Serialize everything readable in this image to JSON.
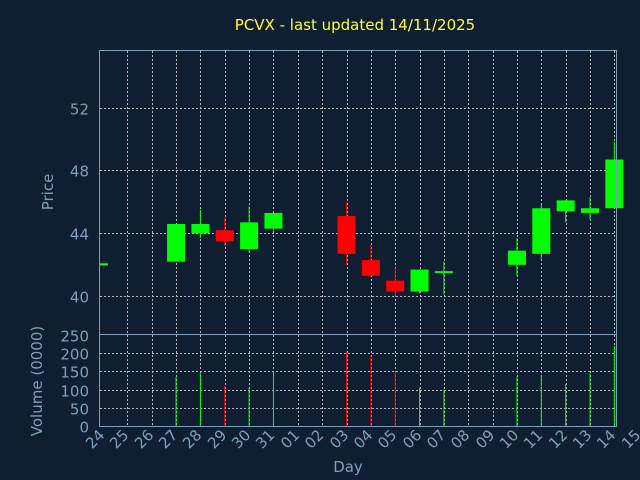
{
  "chart_data": {
    "type": "candlestick",
    "title": "PCVX - last updated 14/11/2025",
    "xlabel": "Day",
    "price_panel": {
      "ylabel": "Price",
      "yticks": [
        40,
        44,
        48,
        52
      ],
      "ylim": [
        37.6,
        55.6
      ]
    },
    "volume_panel": {
      "ylabel": "Volume (0000)",
      "yticks": [
        0,
        50,
        100,
        150,
        200,
        250
      ],
      "ylim": [
        0,
        250
      ]
    },
    "x_tick_labels": [
      "24",
      "25",
      "26",
      "27",
      "28",
      "29",
      "30",
      "31",
      "01",
      "02",
      "03",
      "04",
      "05",
      "06",
      "07",
      "08",
      "09",
      "10",
      "11",
      "12",
      "13",
      "14",
      "15"
    ],
    "colors": {
      "up": "#00ff00",
      "down": "#ff0000",
      "grid": "#b8b8b8",
      "axis_text": "#7f9fbf",
      "title": "#ffff33"
    },
    "candles": [
      {
        "slot": 0,
        "open": 42.1,
        "close": 42.1,
        "high": 42.1,
        "low": 42.1,
        "volume": 0
      },
      {
        "slot": 3,
        "open": 42.2,
        "close": 44.6,
        "high": 44.6,
        "low": 42.2,
        "volume": 135
      },
      {
        "slot": 4,
        "open": 44.0,
        "close": 44.6,
        "high": 45.5,
        "low": 43.7,
        "volume": 145
      },
      {
        "slot": 5,
        "open": 44.2,
        "close": 43.5,
        "high": 45.0,
        "low": 43.2,
        "volume": 110
      },
      {
        "slot": 6,
        "open": 43.0,
        "close": 44.7,
        "high": 45.7,
        "low": 42.8,
        "volume": 105
      },
      {
        "slot": 7,
        "open": 44.3,
        "close": 45.3,
        "high": 45.3,
        "low": 44.2,
        "volume": 148
      },
      {
        "slot": 10,
        "open": 45.1,
        "close": 42.7,
        "high": 46.0,
        "low": 42.0,
        "volume": 205
      },
      {
        "slot": 11,
        "open": 42.3,
        "close": 41.3,
        "high": 43.3,
        "low": 41.2,
        "volume": 195
      },
      {
        "slot": 12,
        "open": 41.0,
        "close": 40.3,
        "high": 41.8,
        "low": 39.9,
        "volume": 150
      },
      {
        "slot": 13,
        "open": 40.3,
        "close": 41.7,
        "high": 41.7,
        "low": 40.2,
        "volume": 105
      },
      {
        "slot": 14,
        "open": 41.5,
        "close": 41.6,
        "high": 42.2,
        "low": 40.1,
        "volume": 100
      },
      {
        "slot": 17,
        "open": 42.0,
        "close": 42.9,
        "high": 43.7,
        "low": 41.3,
        "volume": 135
      },
      {
        "slot": 18,
        "open": 42.7,
        "close": 45.6,
        "high": 45.8,
        "low": 42.4,
        "volume": 140
      },
      {
        "slot": 19,
        "open": 45.4,
        "close": 46.1,
        "high": 46.1,
        "low": 44.7,
        "volume": 115
      },
      {
        "slot": 20,
        "open": 45.3,
        "close": 45.6,
        "high": 46.3,
        "low": 44.9,
        "volume": 145
      },
      {
        "slot": 21,
        "open": 45.6,
        "close": 48.7,
        "high": 49.8,
        "low": 45.6,
        "volume": 220
      }
    ]
  }
}
